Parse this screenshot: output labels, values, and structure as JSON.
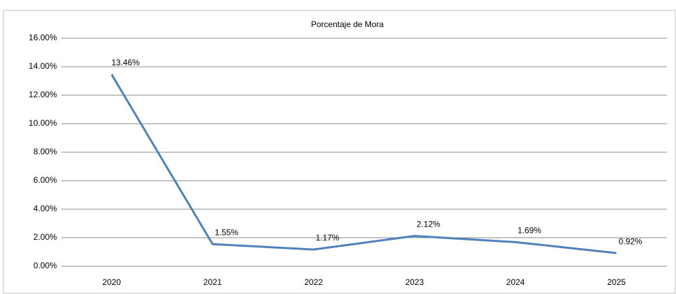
{
  "chart_data": {
    "type": "line",
    "title": "Porcentaje de Mora",
    "categories": [
      "2020",
      "2021",
      "2022",
      "2023",
      "2024",
      "2025"
    ],
    "series": [
      {
        "name": "Porcentaje de Mora",
        "color": "#4f81bd",
        "values": [
          13.46,
          1.55,
          1.17,
          2.12,
          1.69,
          0.92
        ],
        "value_labels": [
          "13.46%",
          "1.55%",
          "1.17%",
          "2.12%",
          "1.69%",
          "0.92%"
        ]
      }
    ],
    "ylim": [
      0,
      16
    ],
    "yticks": [
      {
        "value": 0,
        "label": "0.00%"
      },
      {
        "value": 2,
        "label": "2.00%"
      },
      {
        "value": 4,
        "label": "4.00%"
      },
      {
        "value": 6,
        "label": "6.00%"
      },
      {
        "value": 8,
        "label": "8.00%"
      },
      {
        "value": 10,
        "label": "10.00%"
      },
      {
        "value": 12,
        "label": "12.00%"
      },
      {
        "value": 14,
        "label": "14.00%"
      },
      {
        "value": 16,
        "label": "16.00%"
      }
    ],
    "grid": true
  }
}
